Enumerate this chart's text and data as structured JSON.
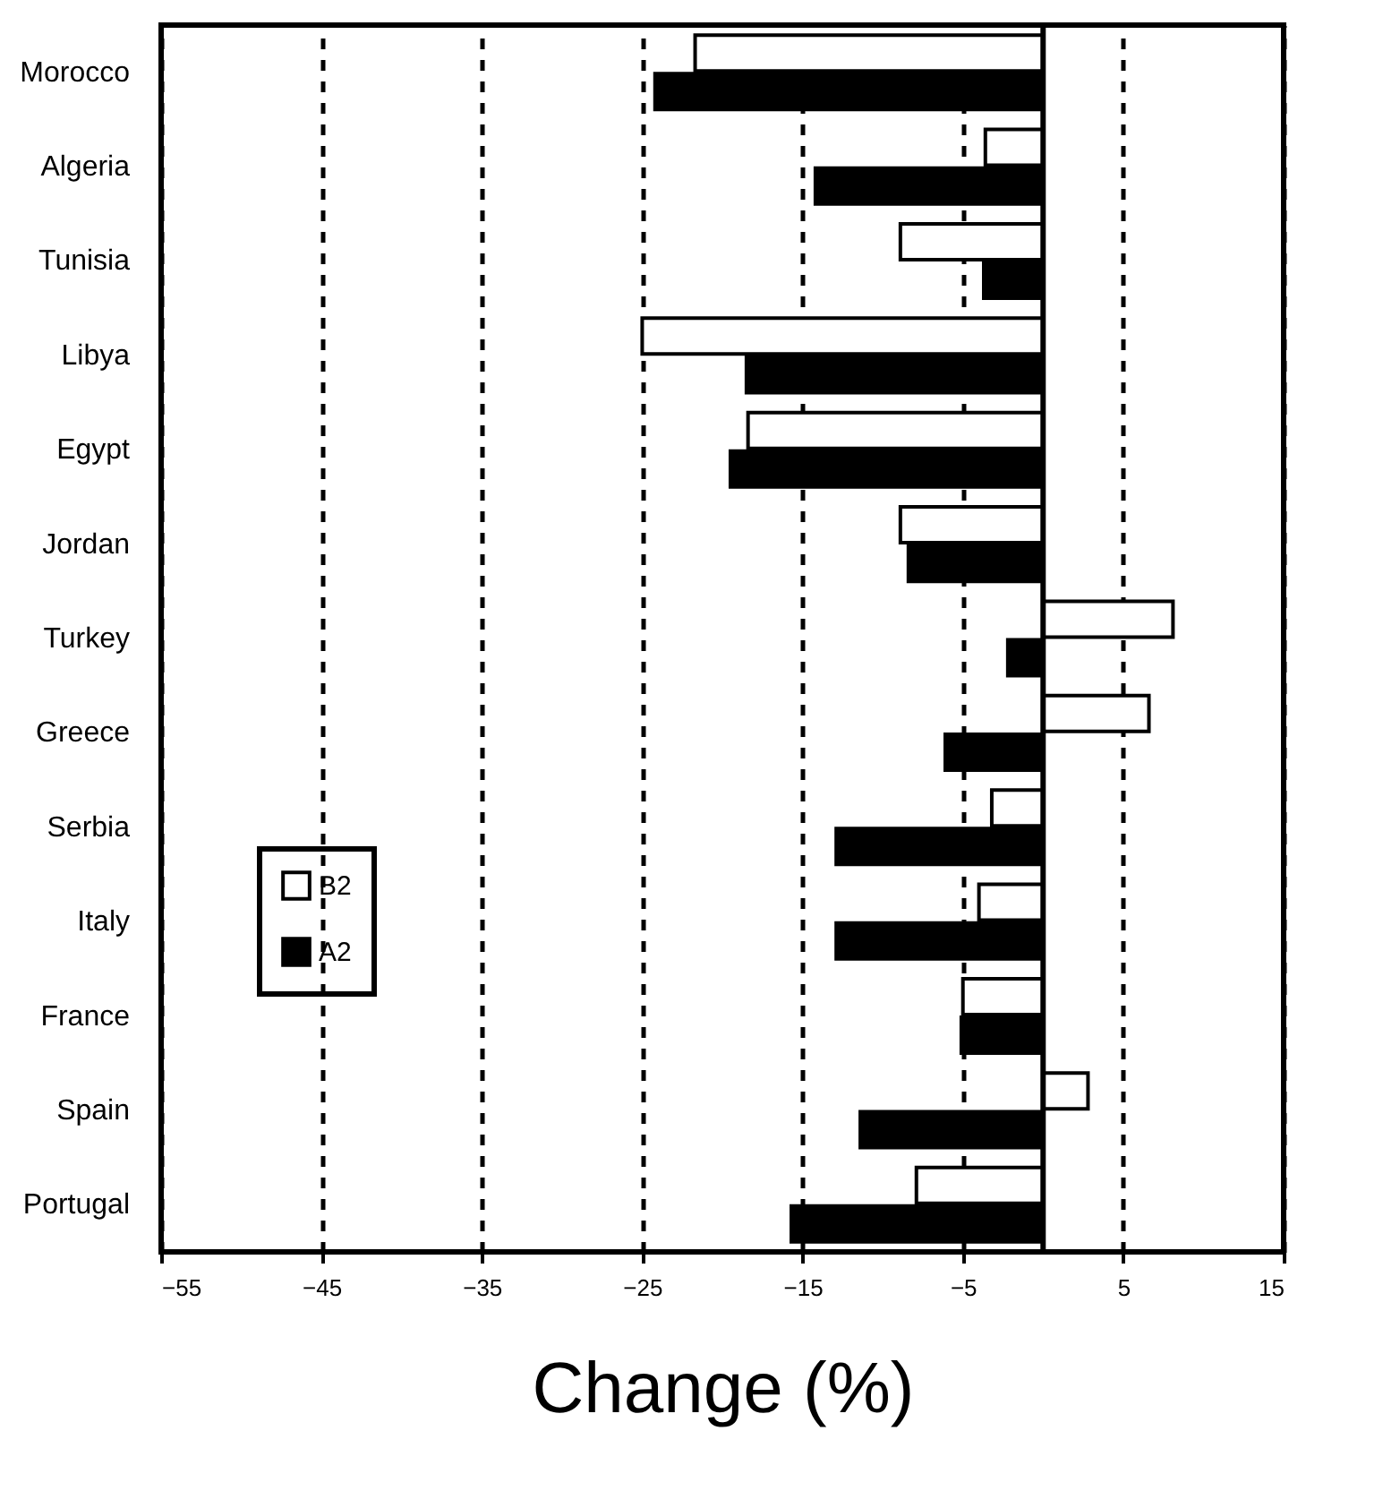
{
  "chart_data": {
    "type": "bar",
    "orientation": "horizontal",
    "xlabel": "Change (%)",
    "categories": [
      "Morocco",
      "Algeria",
      "Tunisia",
      "Libya",
      "Egypt",
      "Jordan",
      "Turkey",
      "Greece",
      "Serbia",
      "Italy",
      "France",
      "Spain",
      "Portugal"
    ],
    "series": [
      {
        "name": "B2",
        "color": "#ffffff",
        "values": [
          -21.7,
          -3.6,
          -8.9,
          -25.0,
          -18.4,
          -8.9,
          8.1,
          6.6,
          -3.2,
          -4.0,
          -5.0,
          2.8,
          -7.9
        ]
      },
      {
        "name": "A2",
        "color": "#000000",
        "values": [
          -24.2,
          -14.2,
          -3.7,
          -18.5,
          -19.5,
          -8.4,
          -2.2,
          -6.1,
          -12.9,
          -12.9,
          -5.1,
          -11.4,
          -15.7
        ]
      }
    ],
    "xlim": [
      -55,
      15
    ],
    "xticks": [
      -55,
      -45,
      -35,
      -25,
      -15,
      -5,
      5,
      15
    ],
    "ref_lines": [
      {
        "axis": "x",
        "value": 0,
        "color": "#000000",
        "line_style": "solid"
      }
    ],
    "grid": "x",
    "legend": "left"
  }
}
